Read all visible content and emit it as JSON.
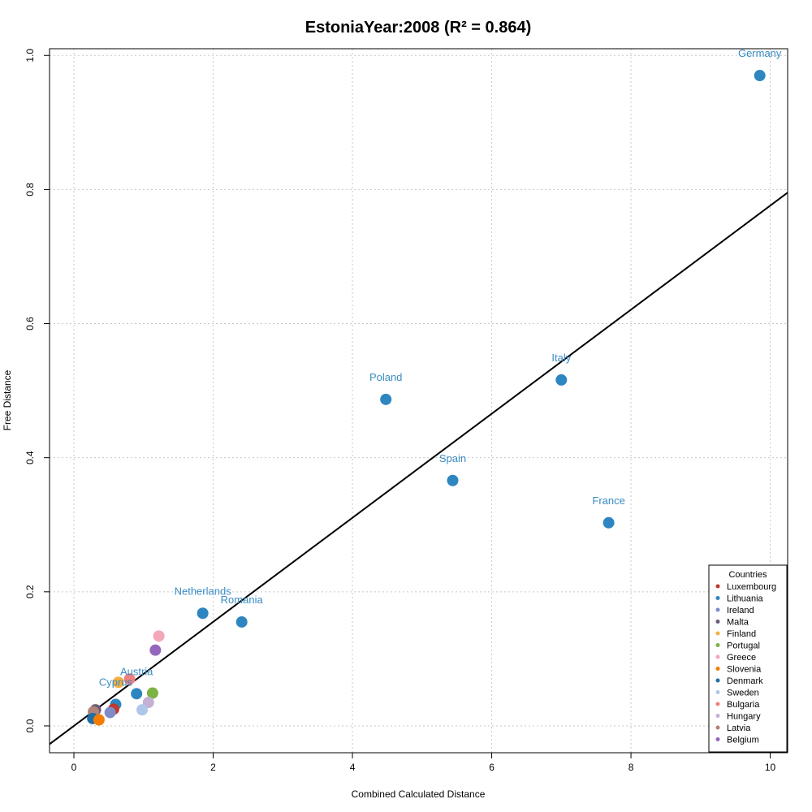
{
  "chart_data": {
    "type": "scatter",
    "title": "EstoniaYear:2008 (R² = 0.864)",
    "xlabel": "Combined Calculated Distance",
    "ylabel": "Free Distance",
    "xlim": [
      -0.35,
      10.25
    ],
    "ylim": [
      -0.04,
      1.01
    ],
    "xticks": [
      0,
      2,
      4,
      6,
      8,
      10
    ],
    "yticks": [
      0.0,
      0.2,
      0.4,
      0.6,
      0.8,
      1.0
    ],
    "xtick_labels": [
      "0",
      "2",
      "4",
      "6",
      "8",
      "10"
    ],
    "ytick_labels": [
      "0.0",
      "0.2",
      "0.4",
      "0.6",
      "0.8",
      "1.0"
    ],
    "grid": true,
    "regression_line": {
      "intercept": 0.0,
      "slope": 0.0776,
      "color": "#000000"
    },
    "legend": {
      "title": "Countries",
      "placement": "bottom-right",
      "entries": [
        {
          "label": "Luxembourg",
          "color": "#c0392b"
        },
        {
          "label": "Lithuania",
          "color": "#2e86c1"
        },
        {
          "label": "Ireland",
          "color": "#7f8cc8"
        },
        {
          "label": "Malta",
          "color": "#6c5b7b"
        },
        {
          "label": "Finland",
          "color": "#f5b041"
        },
        {
          "label": "Portugal",
          "color": "#7cb342"
        },
        {
          "label": "Greece",
          "color": "#f4a7b9"
        },
        {
          "label": "Slovenia",
          "color": "#f57c00"
        },
        {
          "label": "Denmark",
          "color": "#1f6fa8"
        },
        {
          "label": "Sweden",
          "color": "#aec7e8"
        },
        {
          "label": "Bulgaria",
          "color": "#f08080"
        },
        {
          "label": "Hungary",
          "color": "#c5b0d5"
        },
        {
          "label": "Latvia",
          "color": "#b08478"
        },
        {
          "label": "Belgium",
          "color": "#9467bd"
        }
      ]
    },
    "points": [
      {
        "x": 9.85,
        "y": 0.97,
        "color": "#2e86c1",
        "label": "Germany"
      },
      {
        "x": 7.0,
        "y": 0.516,
        "color": "#2e86c1",
        "label": "Italy"
      },
      {
        "x": 4.48,
        "y": 0.487,
        "color": "#2e86c1",
        "label": "Poland"
      },
      {
        "x": 5.44,
        "y": 0.366,
        "color": "#2e86c1",
        "label": "Spain"
      },
      {
        "x": 7.68,
        "y": 0.303,
        "color": "#2e86c1",
        "label": "France"
      },
      {
        "x": 1.85,
        "y": 0.168,
        "color": "#2e86c1",
        "label": "Netherlands"
      },
      {
        "x": 2.41,
        "y": 0.155,
        "color": "#2e86c1",
        "label": "Romania"
      },
      {
        "x": 0.9,
        "y": 0.048,
        "color": "#2e86c1",
        "label": "Austria"
      },
      {
        "x": 0.6,
        "y": 0.032,
        "color": "#2e86c1",
        "label": "Cyprus"
      },
      {
        "x": 1.22,
        "y": 0.134,
        "color": "#f4a7b9",
        "label": ""
      },
      {
        "x": 1.17,
        "y": 0.113,
        "color": "#9467bd",
        "label": ""
      },
      {
        "x": 0.8,
        "y": 0.07,
        "color": "#f08080",
        "label": ""
      },
      {
        "x": 0.64,
        "y": 0.065,
        "color": "#f5b041",
        "label": ""
      },
      {
        "x": 1.13,
        "y": 0.049,
        "color": "#7cb342",
        "label": ""
      },
      {
        "x": 1.07,
        "y": 0.035,
        "color": "#c5b0d5",
        "label": ""
      },
      {
        "x": 0.98,
        "y": 0.024,
        "color": "#aec7e8",
        "label": ""
      },
      {
        "x": 0.57,
        "y": 0.025,
        "color": "#c0392b",
        "label": ""
      },
      {
        "x": 0.52,
        "y": 0.02,
        "color": "#7f8cc8",
        "label": ""
      },
      {
        "x": 0.31,
        "y": 0.024,
        "color": "#6c5b7b",
        "label": ""
      },
      {
        "x": 0.28,
        "y": 0.021,
        "color": "#b08478",
        "label": ""
      },
      {
        "x": 0.27,
        "y": 0.011,
        "color": "#1f6fa8",
        "label": ""
      },
      {
        "x": 0.36,
        "y": 0.009,
        "color": "#f57c00",
        "label": ""
      }
    ]
  }
}
